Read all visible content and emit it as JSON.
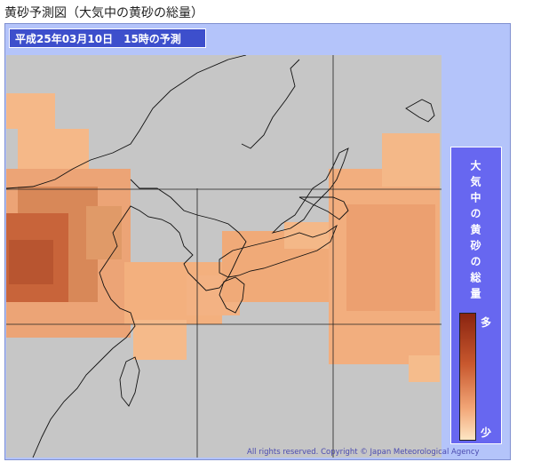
{
  "title": "黄砂予測図（大気中の黄砂の総量）",
  "map": {
    "forecast_label": "平成25年03月10日　15時の予測",
    "legend": {
      "title": "大気中の黄砂の総量",
      "high": "多",
      "low": "少"
    },
    "copyright": "All rights reserved. Copyright © Japan Meteorological Agency"
  }
}
